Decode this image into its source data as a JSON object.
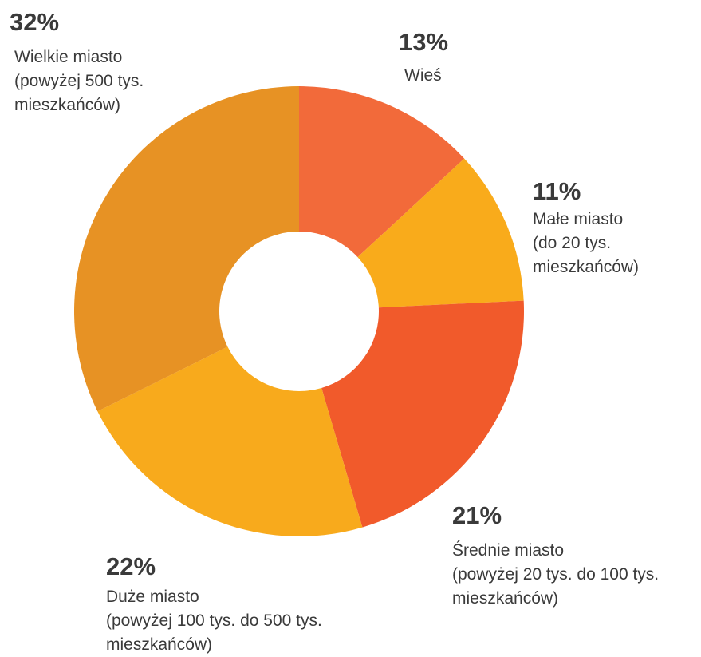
{
  "chart_data": {
    "type": "donut",
    "categories": [
      "Wieś",
      "Małe miasto\n(do 20 tys.\nmieszkańców)",
      "Średnie miasto\n(powyżej 20 tys. do 100 tys.\nmieszkańców)",
      "Duże miasto\n(powyżej 100 tys. do 500 tys.\nmieszkańców)",
      "Wielkie miasto\n(powyżej 500 tys.\nmieszkańców)"
    ],
    "values": [
      13,
      11,
      21,
      22,
      32
    ],
    "value_labels": [
      "13%",
      "11%",
      "21%",
      "22%",
      "32%"
    ],
    "colors": [
      "#f26a3a",
      "#f9ab1b",
      "#f15a2b",
      "#f8aa1c",
      "#e79224"
    ]
  }
}
